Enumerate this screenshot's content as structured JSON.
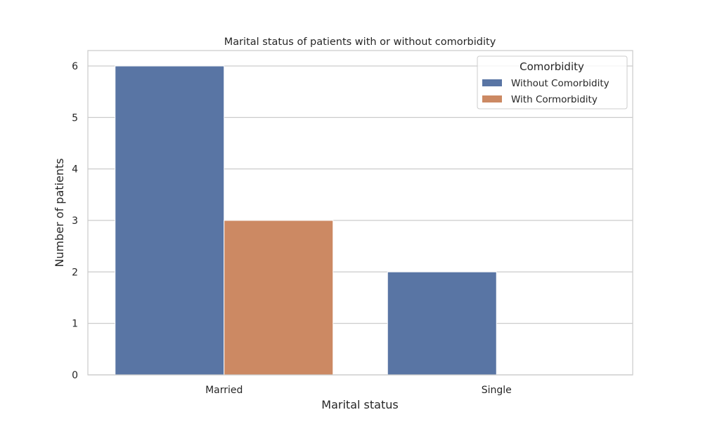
{
  "chart_data": {
    "type": "bar",
    "title": "Marital status of patients with or without comorbidity",
    "xlabel": "Marital status",
    "ylabel": "Number of patients",
    "categories": [
      "Married",
      "Single"
    ],
    "series": [
      {
        "name": "Without Comorbidity",
        "values": [
          6,
          2
        ],
        "color": "#5975a4"
      },
      {
        "name": "With Cormorbidity",
        "values": [
          3,
          0
        ],
        "color": "#cc8963"
      }
    ],
    "ylim": [
      0,
      6.3
    ],
    "yticks": [
      "0",
      "1",
      "2",
      "3",
      "4",
      "5",
      "6"
    ],
    "grid": true,
    "legend": {
      "title": "Comorbidity",
      "placement": "top-right"
    }
  }
}
